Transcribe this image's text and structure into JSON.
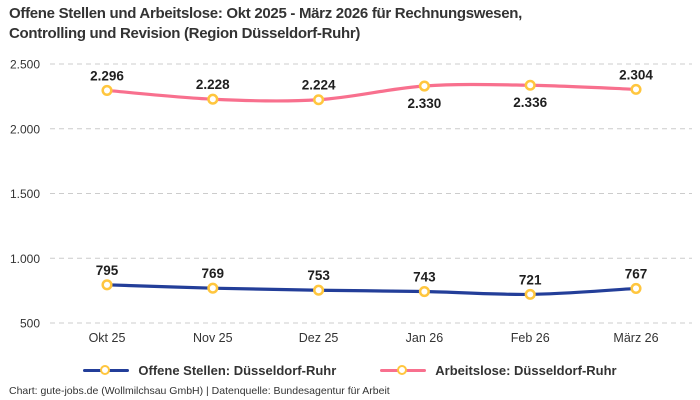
{
  "header": {
    "title_lines": [
      "Offene Stellen und Arbeitslose: Okt 2025 - März 2026 für Rechnungswesen,",
      "Controlling und Revision (Region Düsseldorf-Ruhr)"
    ]
  },
  "legend": [
    {
      "label": "Offene Stellen: Düsseldorf-Ruhr",
      "color": "#233E99"
    },
    {
      "label": "Arbeitslose: Düsseldorf-Ruhr",
      "color": "#F8708E"
    }
  ],
  "footer": {
    "text": "Chart: gute-jobs.de (Wollmilchsau GmbH) | Datenquelle: Bundesagentur für Arbeit"
  },
  "chart_data": {
    "type": "line",
    "title": "Offene Stellen und Arbeitslose: Okt 2025 - März 2026 für Rechnungswesen, Controlling und Revision (Region Düsseldorf-Ruhr)",
    "categories": [
      "Okt 25",
      "Nov 25",
      "Dez 25",
      "Jan 26",
      "Feb 26",
      "März 26"
    ],
    "series": [
      {
        "name": "Offene Stellen: Düsseldorf-Ruhr",
        "color": "#233E99",
        "values": [
          795,
          769,
          753,
          743,
          721,
          767
        ],
        "labels": [
          "795",
          "769",
          "753",
          "743",
          "721",
          "767"
        ],
        "label_pos": [
          "above",
          "above",
          "above",
          "above",
          "above",
          "above"
        ]
      },
      {
        "name": "Arbeitslose: Düsseldorf-Ruhr",
        "color": "#F8708E",
        "values": [
          2296,
          2228,
          2224,
          2330,
          2336,
          2304
        ],
        "labels": [
          "2.296",
          "2.228",
          "2.224",
          "2.330",
          "2.336",
          "2.304"
        ],
        "label_pos": [
          "above",
          "above",
          "above",
          "below",
          "below",
          "above"
        ]
      }
    ],
    "ylim": [
      500,
      2500
    ],
    "yticks": [
      500,
      1000,
      1500,
      2000,
      2500
    ],
    "ytick_labels": [
      "500",
      "1.000",
      "1.500",
      "2.000",
      "2.500"
    ],
    "grid": "dashed-horizontal",
    "grid_color": "#CCCCCC",
    "axis_text_color": "#333333",
    "data_label_color": "#1F1F1F",
    "marker": {
      "fill": "#FFFFFF",
      "stroke": "#FFC63E"
    },
    "legend_position": "bottom",
    "smooth": true
  }
}
